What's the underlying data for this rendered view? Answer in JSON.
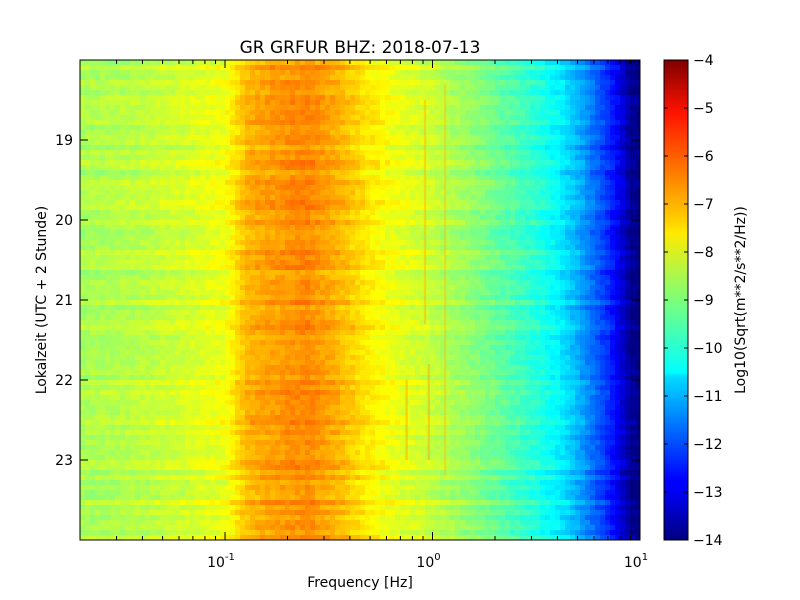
{
  "chart_data": {
    "type": "heatmap",
    "title": "GR GRFUR BHZ: 2018-07-13",
    "xlabel": "Frequency [Hz]",
    "ylabel": "Lokalzeit (UTC + 2 Stunde)",
    "x_scale": "log",
    "xlim": [
      0.02,
      10
    ],
    "x_ticks": [
      {
        "value": 0.1,
        "base": "10",
        "exp": "-1"
      },
      {
        "value": 1,
        "base": "10",
        "exp": "0"
      },
      {
        "value": 10,
        "base": "10",
        "exp": "1"
      }
    ],
    "ylim": [
      18,
      24
    ],
    "y_ticks": [
      19,
      20,
      21,
      22,
      23
    ],
    "y_inverted": true,
    "colorbar": {
      "label": "Log10(Sqrt(m**2/s**2/Hz))",
      "min": -14,
      "max": -4,
      "ticks": [
        -4,
        -5,
        -6,
        -7,
        -8,
        -9,
        -10,
        -11,
        -12,
        -13,
        -14
      ],
      "colormap": "jet"
    },
    "value_profile": {
      "frequency_hz": [
        0.02,
        0.04,
        0.06,
        0.1,
        0.13,
        0.2,
        0.25,
        0.35,
        0.5,
        0.7,
        1.0,
        1.5,
        2.0,
        3.0,
        4.0,
        5.0,
        6.0,
        7.0,
        8.0,
        9.0,
        10.0
      ],
      "log10_amplitude": [
        -8.6,
        -8.4,
        -8.2,
        -7.9,
        -7.0,
        -6.7,
        -6.6,
        -7.0,
        -7.6,
        -8.0,
        -8.3,
        -8.8,
        -9.2,
        -9.8,
        -10.3,
        -11.0,
        -11.7,
        -12.3,
        -13.0,
        -13.8,
        -14.0
      ]
    },
    "grid": false,
    "legend": "none"
  }
}
